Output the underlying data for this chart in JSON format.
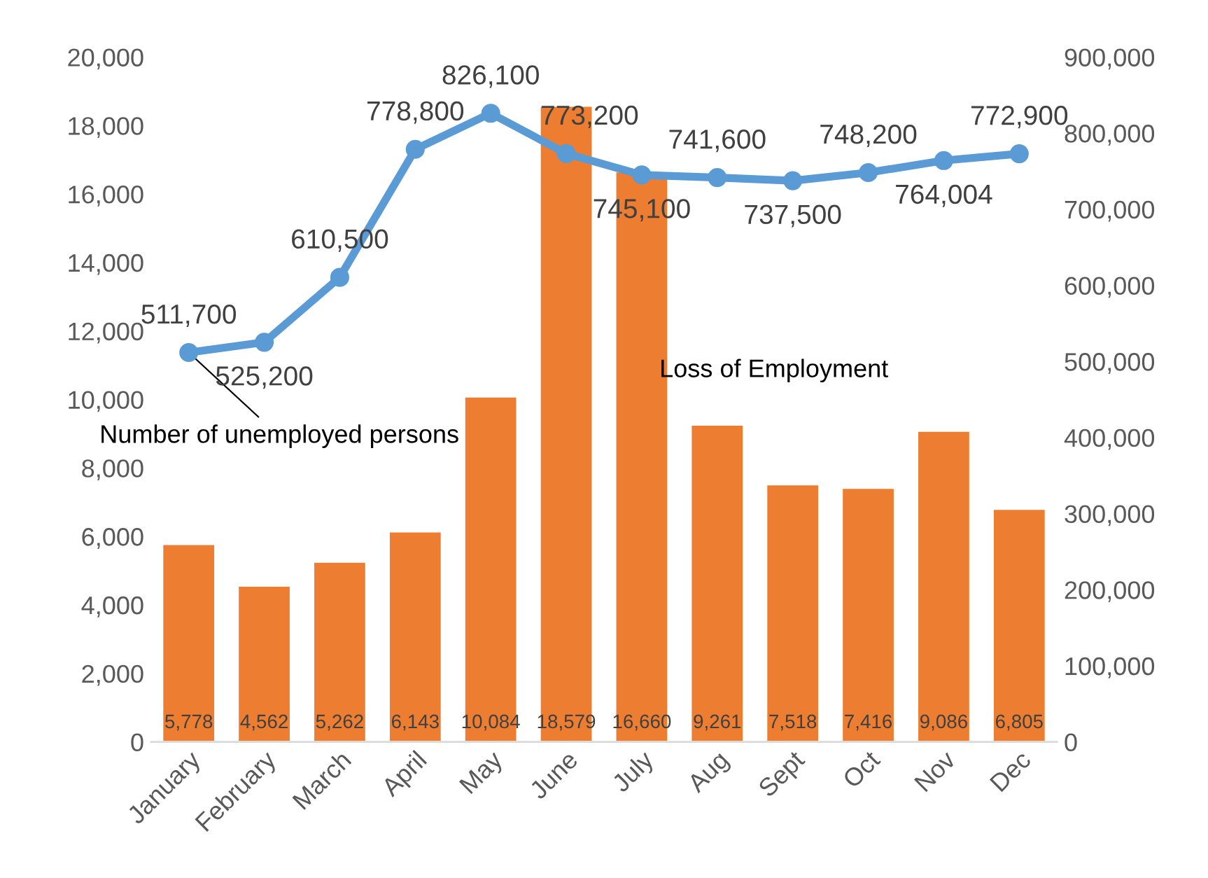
{
  "chart_data": {
    "type": "bar",
    "categories": [
      "January",
      "February",
      "March",
      "April",
      "May",
      "June",
      "July",
      "Aug",
      "Sept",
      "Oct",
      "Nov",
      "Dec"
    ],
    "series": [
      {
        "name": "Loss of Employment",
        "color": "#ed7d31",
        "values": [
          5778,
          4562,
          5262,
          6143,
          10084,
          18579,
          16660,
          9261,
          7518,
          7416,
          9086,
          6805
        ],
        "value_labels": [
          "5,778",
          "4,562",
          "5,262",
          "6,143",
          "10,084",
          "18,579",
          "16,660",
          "9,261",
          "7,518",
          "7,416",
          "9,086",
          "6,805"
        ]
      },
      {
        "name": "Number of unemployed persons",
        "type": "line",
        "axis": "y2",
        "color": "#5b9bd5",
        "values": [
          511700,
          525200,
          610500,
          778800,
          826100,
          773200,
          745100,
          741600,
          737500,
          748200,
          764004,
          772900
        ],
        "value_labels": [
          "511,700",
          "525,200",
          "610,500",
          "778,800",
          "826,100",
          "773,200",
          "745,100",
          "741,600",
          "737,500",
          "748,200",
          "764,004",
          "772,900"
        ]
      }
    ],
    "marker": "circle",
    "legend": false,
    "grid": false,
    "ylim": [
      0,
      20000
    ],
    "yticks": [
      0,
      {
        "value": 2000,
        "label": "2,000"
      },
      {
        "value": 4000,
        "label": "4,000"
      },
      {
        "value": 6000,
        "label": "6,000"
      },
      {
        "value": 8000,
        "label": "8,000"
      },
      {
        "value": 10000,
        "label": "10,000"
      },
      {
        "value": 12000,
        "label": "12,000"
      },
      {
        "value": 14000,
        "label": "14,000"
      },
      {
        "value": 16000,
        "label": "16,000"
      },
      {
        "value": 18000,
        "label": "18,000"
      },
      {
        "value": 20000,
        "label": "20,000"
      }
    ],
    "y2lim": [
      0,
      900000
    ],
    "y2ticks": [
      0,
      {
        "value": 100000,
        "label": "100,000"
      },
      {
        "value": 200000,
        "label": "200,000"
      },
      {
        "value": 300000,
        "label": "300,000"
      },
      {
        "value": 400000,
        "label": "400,000"
      },
      {
        "value": 500000,
        "label": "500,000"
      },
      {
        "value": 600000,
        "label": "600,000"
      },
      {
        "value": 700000,
        "label": "700,000"
      },
      {
        "value": 800000,
        "label": "800,000"
      },
      {
        "value": 900000,
        "label": "900,000"
      }
    ]
  }
}
